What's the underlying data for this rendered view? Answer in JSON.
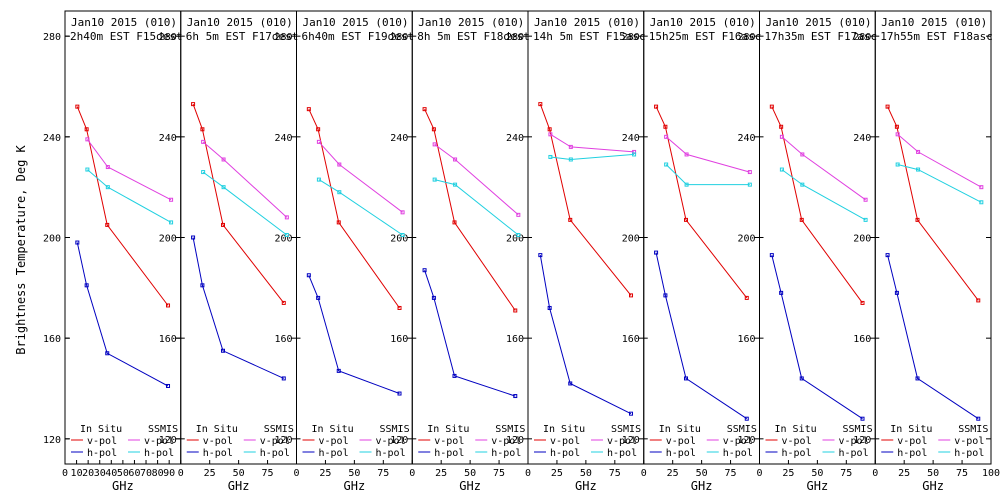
{
  "chart_data": {
    "type": "line",
    "ylabel": "Brightness Temperature, Deg K",
    "xlabel": "GHz",
    "xlim": [
      0,
      100
    ],
    "ylim": [
      110,
      290
    ],
    "yticks": [
      120,
      160,
      200,
      240,
      280
    ],
    "xticks": [
      0,
      25,
      50,
      75
    ],
    "first_panel_xticks": [
      0,
      10,
      20,
      30,
      40,
      50,
      60,
      70,
      80,
      90
    ],
    "legend": {
      "insitu_header": "In Situ",
      "ssmis_header": "SSMIS",
      "vpol": "v-pol",
      "hpol": "h-pol"
    },
    "colors": {
      "insitu_v": "#e00000",
      "insitu_h": "#0000c0",
      "ssmis_v": "#e040e0",
      "ssmis_h": "#20d0e0"
    },
    "panels": [
      {
        "title1": "Jan10 2015 (010)",
        "title2": "2h40m EST F15dest",
        "insitu_v": [
          [
            10.65,
            252
          ],
          [
            18.7,
            243
          ],
          [
            36.5,
            205
          ],
          [
            89,
            173
          ]
        ],
        "insitu_h": [
          [
            10.65,
            198
          ],
          [
            18.7,
            181
          ],
          [
            36.5,
            154
          ],
          [
            89,
            141
          ]
        ],
        "ssmis_v": [
          [
            19.35,
            239
          ],
          [
            37,
            228
          ],
          [
            91.65,
            215
          ]
        ],
        "ssmis_h": [
          [
            19.35,
            227
          ],
          [
            37,
            220
          ],
          [
            91.65,
            206
          ]
        ]
      },
      {
        "title1": "Jan10 2015 (010)",
        "title2": "6h 5m EST F17dest",
        "insitu_v": [
          [
            10.65,
            253
          ],
          [
            18.7,
            243
          ],
          [
            36.5,
            205
          ],
          [
            89,
            174
          ]
        ],
        "insitu_h": [
          [
            10.65,
            200
          ],
          [
            18.7,
            181
          ],
          [
            36.5,
            155
          ],
          [
            89,
            144
          ]
        ],
        "ssmis_v": [
          [
            19.35,
            238
          ],
          [
            37,
            231
          ],
          [
            91.65,
            208
          ]
        ],
        "ssmis_h": [
          [
            19.35,
            226
          ],
          [
            37,
            220
          ],
          [
            91.65,
            201
          ]
        ]
      },
      {
        "title1": "Jan10 2015 (010)",
        "title2": "6h40m EST F19dest",
        "insitu_v": [
          [
            10.65,
            251
          ],
          [
            18.7,
            243
          ],
          [
            36.5,
            206
          ],
          [
            89,
            172
          ]
        ],
        "insitu_h": [
          [
            10.65,
            185
          ],
          [
            18.7,
            176
          ],
          [
            36.5,
            147
          ],
          [
            89,
            138
          ]
        ],
        "ssmis_v": [
          [
            19.35,
            238
          ],
          [
            37,
            229
          ],
          [
            91.65,
            210
          ]
        ],
        "ssmis_h": [
          [
            19.35,
            223
          ],
          [
            37,
            218
          ],
          [
            91.65,
            201
          ]
        ]
      },
      {
        "title1": "Jan10 2015 (010)",
        "title2": "8h 5m EST F18dest",
        "insitu_v": [
          [
            10.65,
            251
          ],
          [
            18.7,
            243
          ],
          [
            36.5,
            206
          ],
          [
            89,
            171
          ]
        ],
        "insitu_h": [
          [
            10.65,
            187
          ],
          [
            18.7,
            176
          ],
          [
            36.5,
            145
          ],
          [
            89,
            137
          ]
        ],
        "ssmis_v": [
          [
            19.35,
            237
          ],
          [
            37,
            231
          ],
          [
            91.65,
            209
          ]
        ],
        "ssmis_h": [
          [
            19.35,
            223
          ],
          [
            37,
            221
          ],
          [
            91.65,
            201
          ]
        ]
      },
      {
        "title1": "Jan10 2015 (010)",
        "title2": "14h 5m EST F15asc",
        "insitu_v": [
          [
            10.65,
            253
          ],
          [
            18.7,
            243
          ],
          [
            36.5,
            207
          ],
          [
            89,
            177
          ]
        ],
        "insitu_h": [
          [
            10.65,
            193
          ],
          [
            18.7,
            172
          ],
          [
            36.5,
            142
          ],
          [
            89,
            130
          ]
        ],
        "ssmis_v": [
          [
            19.35,
            241
          ],
          [
            37,
            236
          ],
          [
            91.65,
            234
          ]
        ],
        "ssmis_h": [
          [
            19.35,
            232
          ],
          [
            37,
            231
          ],
          [
            91.65,
            233
          ]
        ]
      },
      {
        "title1": "Jan10 2015 (010)",
        "title2": "15h25m EST F16asc",
        "insitu_v": [
          [
            10.65,
            252
          ],
          [
            18.7,
            244
          ],
          [
            36.5,
            207
          ],
          [
            89,
            176
          ]
        ],
        "insitu_h": [
          [
            10.65,
            194
          ],
          [
            18.7,
            177
          ],
          [
            36.5,
            144
          ],
          [
            89,
            128
          ]
        ],
        "ssmis_v": [
          [
            19.35,
            240
          ],
          [
            37,
            233
          ],
          [
            91.65,
            226
          ]
        ],
        "ssmis_h": [
          [
            19.35,
            229
          ],
          [
            37,
            221
          ],
          [
            91.65,
            221
          ]
        ]
      },
      {
        "title1": "Jan10 2015 (010)",
        "title2": "17h35m EST F17asc",
        "insitu_v": [
          [
            10.65,
            252
          ],
          [
            18.7,
            244
          ],
          [
            36.5,
            207
          ],
          [
            89,
            174
          ]
        ],
        "insitu_h": [
          [
            10.65,
            193
          ],
          [
            18.7,
            178
          ],
          [
            36.5,
            144
          ],
          [
            89,
            128
          ]
        ],
        "ssmis_v": [
          [
            19.35,
            240
          ],
          [
            37,
            233
          ],
          [
            91.65,
            215
          ]
        ],
        "ssmis_h": [
          [
            19.35,
            227
          ],
          [
            37,
            221
          ],
          [
            91.65,
            207
          ]
        ]
      },
      {
        "title1": "Jan10 2015 (010)",
        "title2": "17h55m EST F18asc",
        "insitu_v": [
          [
            10.65,
            252
          ],
          [
            18.7,
            244
          ],
          [
            36.5,
            207
          ],
          [
            89,
            175
          ]
        ],
        "insitu_h": [
          [
            10.65,
            193
          ],
          [
            18.7,
            178
          ],
          [
            36.5,
            144
          ],
          [
            89,
            128
          ]
        ],
        "ssmis_v": [
          [
            19.35,
            241
          ],
          [
            37,
            234
          ],
          [
            91.65,
            220
          ]
        ],
        "ssmis_h": [
          [
            19.35,
            229
          ],
          [
            37,
            227
          ],
          [
            91.65,
            214
          ]
        ]
      }
    ]
  }
}
